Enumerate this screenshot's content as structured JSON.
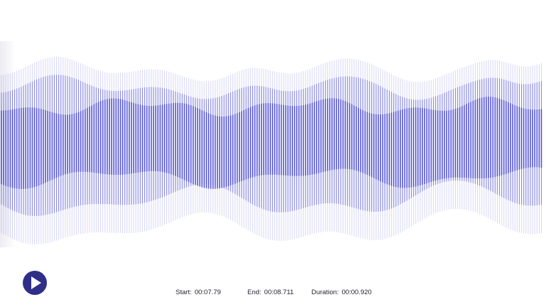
{
  "player": {
    "play_button_icon": "play-icon",
    "accent_color": "#2f2f88",
    "waveform_color": "#4b4bd6"
  },
  "selection": {
    "start_label": "Start:",
    "start_value": "00:07.79",
    "end_label": "End:",
    "end_value": "00:08.711",
    "duration_label": "Duration:",
    "duration_value": "00:00.920"
  }
}
